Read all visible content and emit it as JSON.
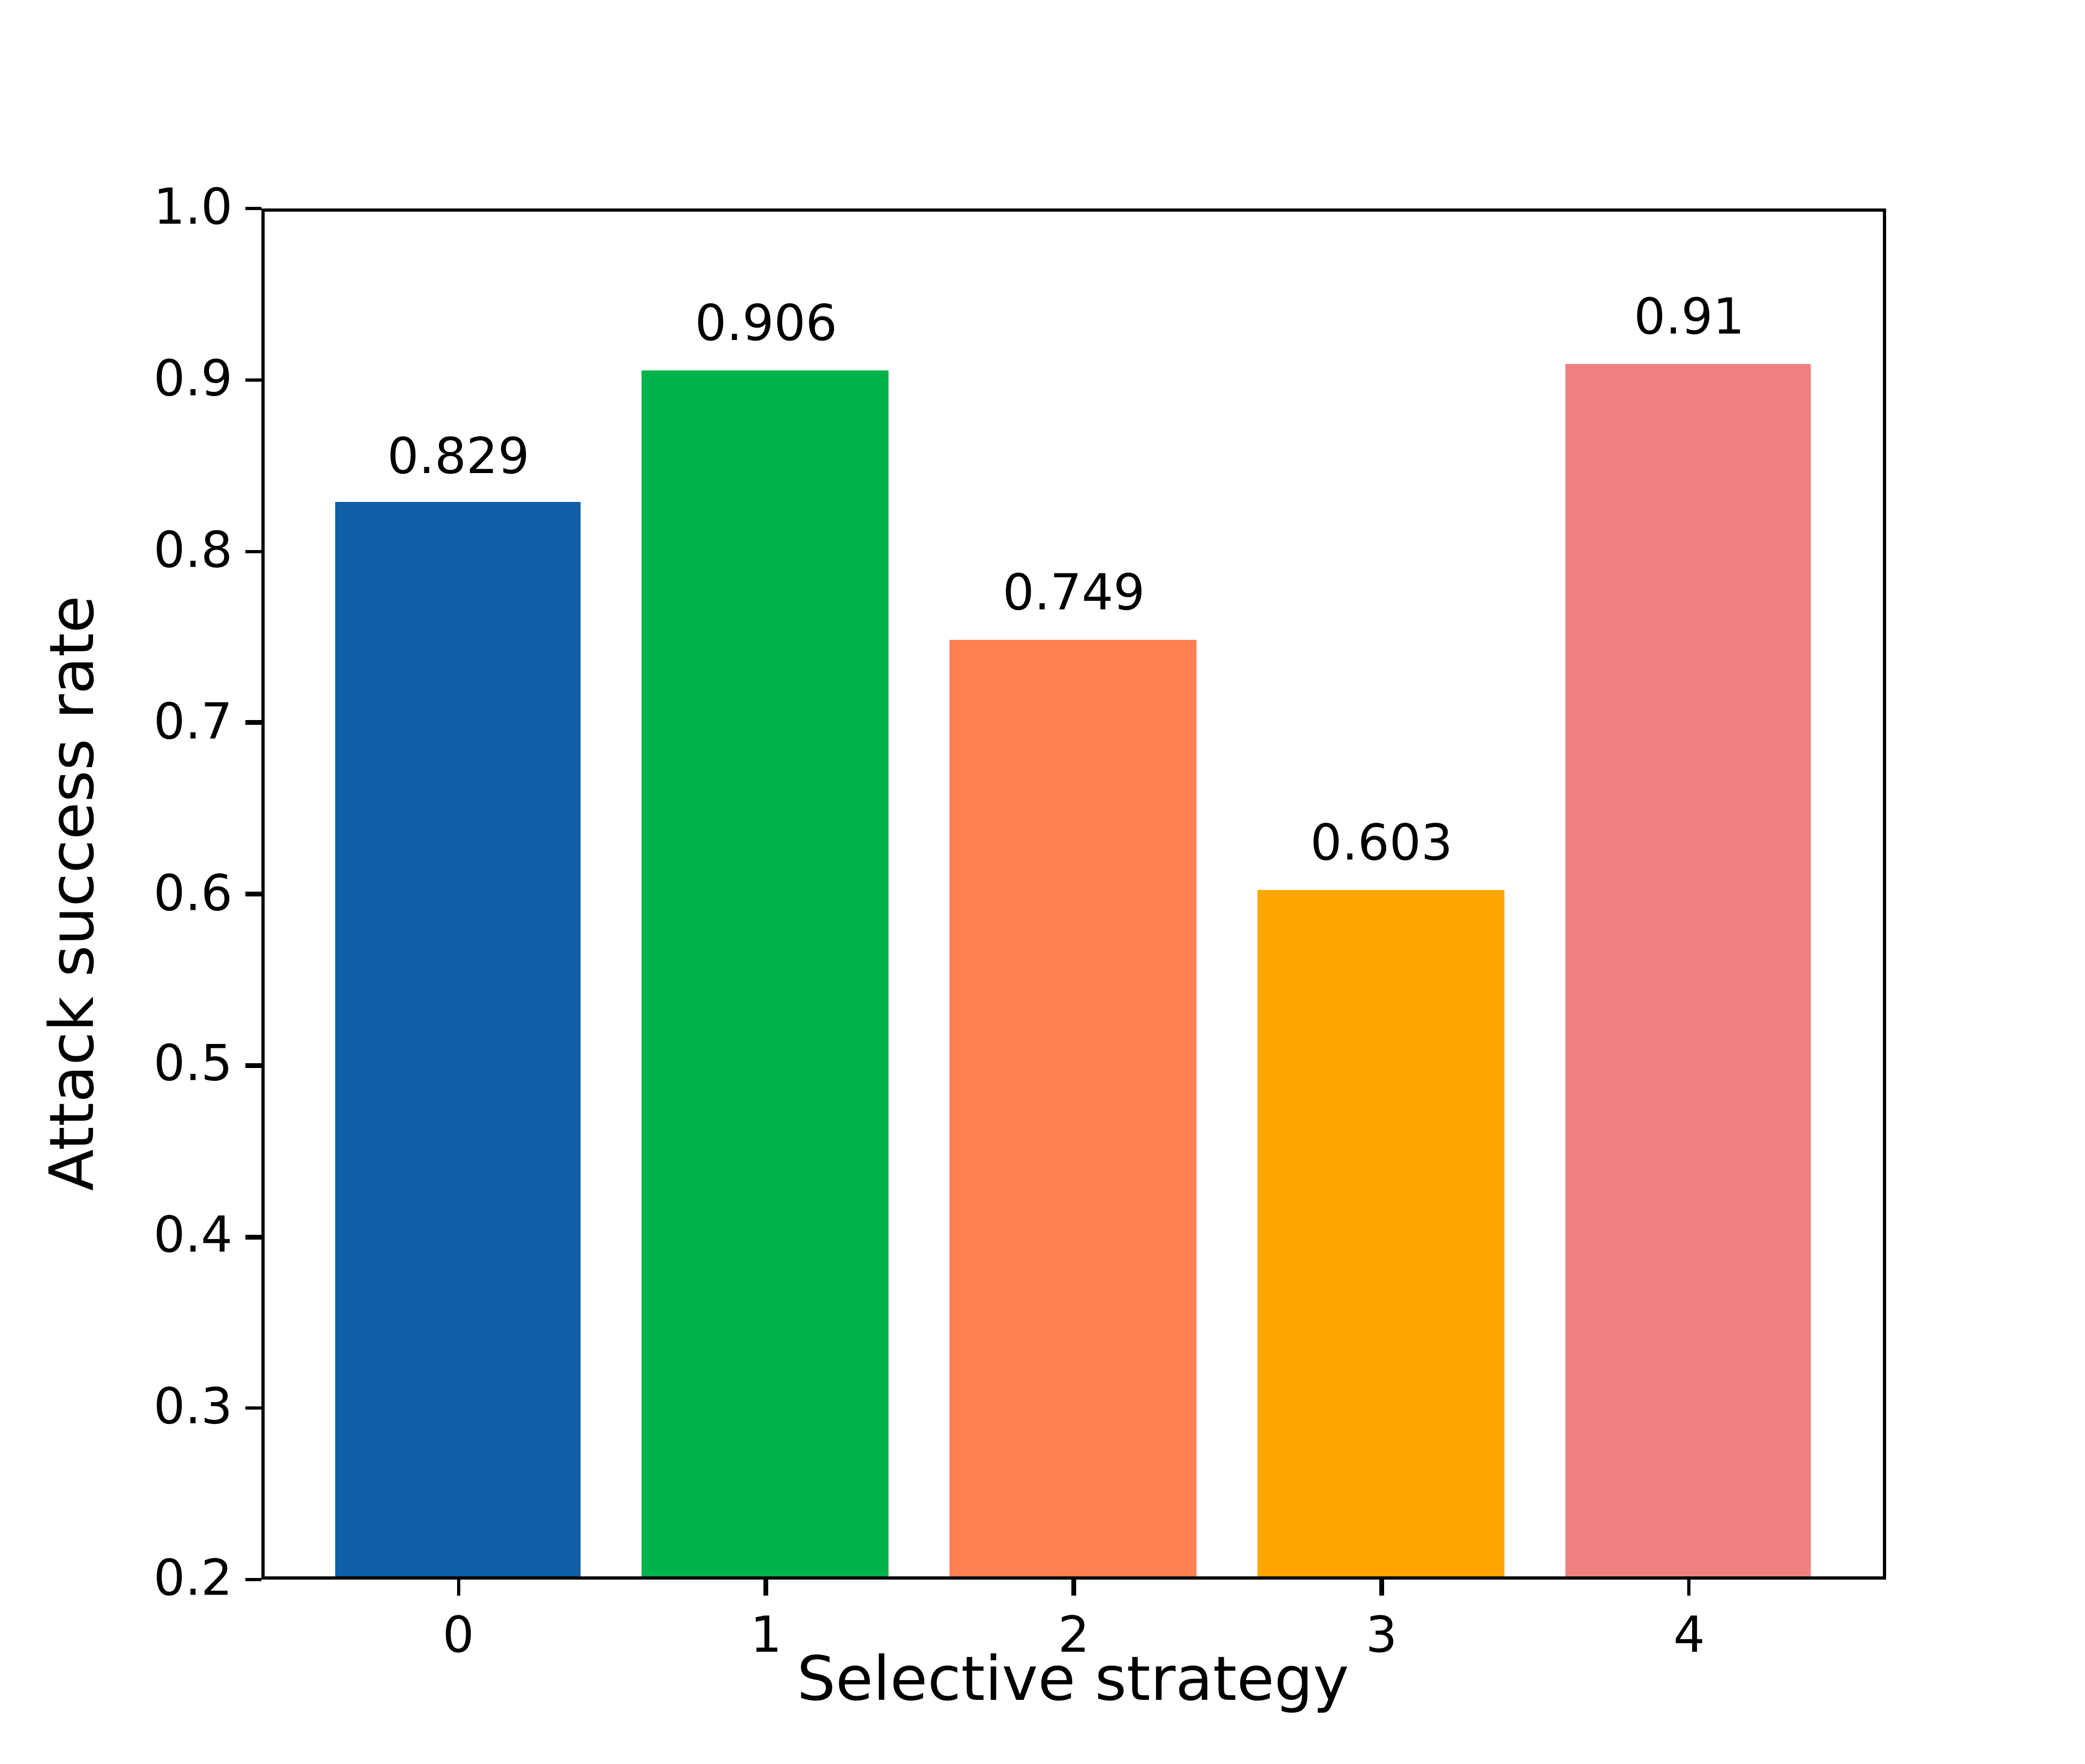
{
  "colors": {
    "background": "#ffffff",
    "axis": "#000000",
    "text": "#000000"
  },
  "chart_data": {
    "type": "bar",
    "title": "",
    "xlabel": "Selective strategy",
    "ylabel": "Attack success rate",
    "categories": [
      "0",
      "1",
      "2",
      "3",
      "4"
    ],
    "values": [
      0.829,
      0.906,
      0.749,
      0.603,
      0.91
    ],
    "value_labels": [
      "0.829",
      "0.906",
      "0.749",
      "0.603",
      "0.91"
    ],
    "bar_colors": [
      "#0E5FA8",
      "#00B44A",
      "#FF8050",
      "#FFA500",
      "#F08080"
    ],
    "ylim": [
      0.2,
      1.0
    ],
    "yticks": [
      0.2,
      0.3,
      0.4,
      0.5,
      0.6,
      0.7,
      0.8,
      0.9,
      1.0
    ],
    "ytick_labels": [
      "0.2",
      "0.3",
      "0.4",
      "0.5",
      "0.6",
      "0.7",
      "0.8",
      "0.9",
      "1.0"
    ],
    "xlim": [
      -0.64,
      4.64
    ],
    "bar_width": 0.8,
    "grid": false,
    "legend": null
  }
}
